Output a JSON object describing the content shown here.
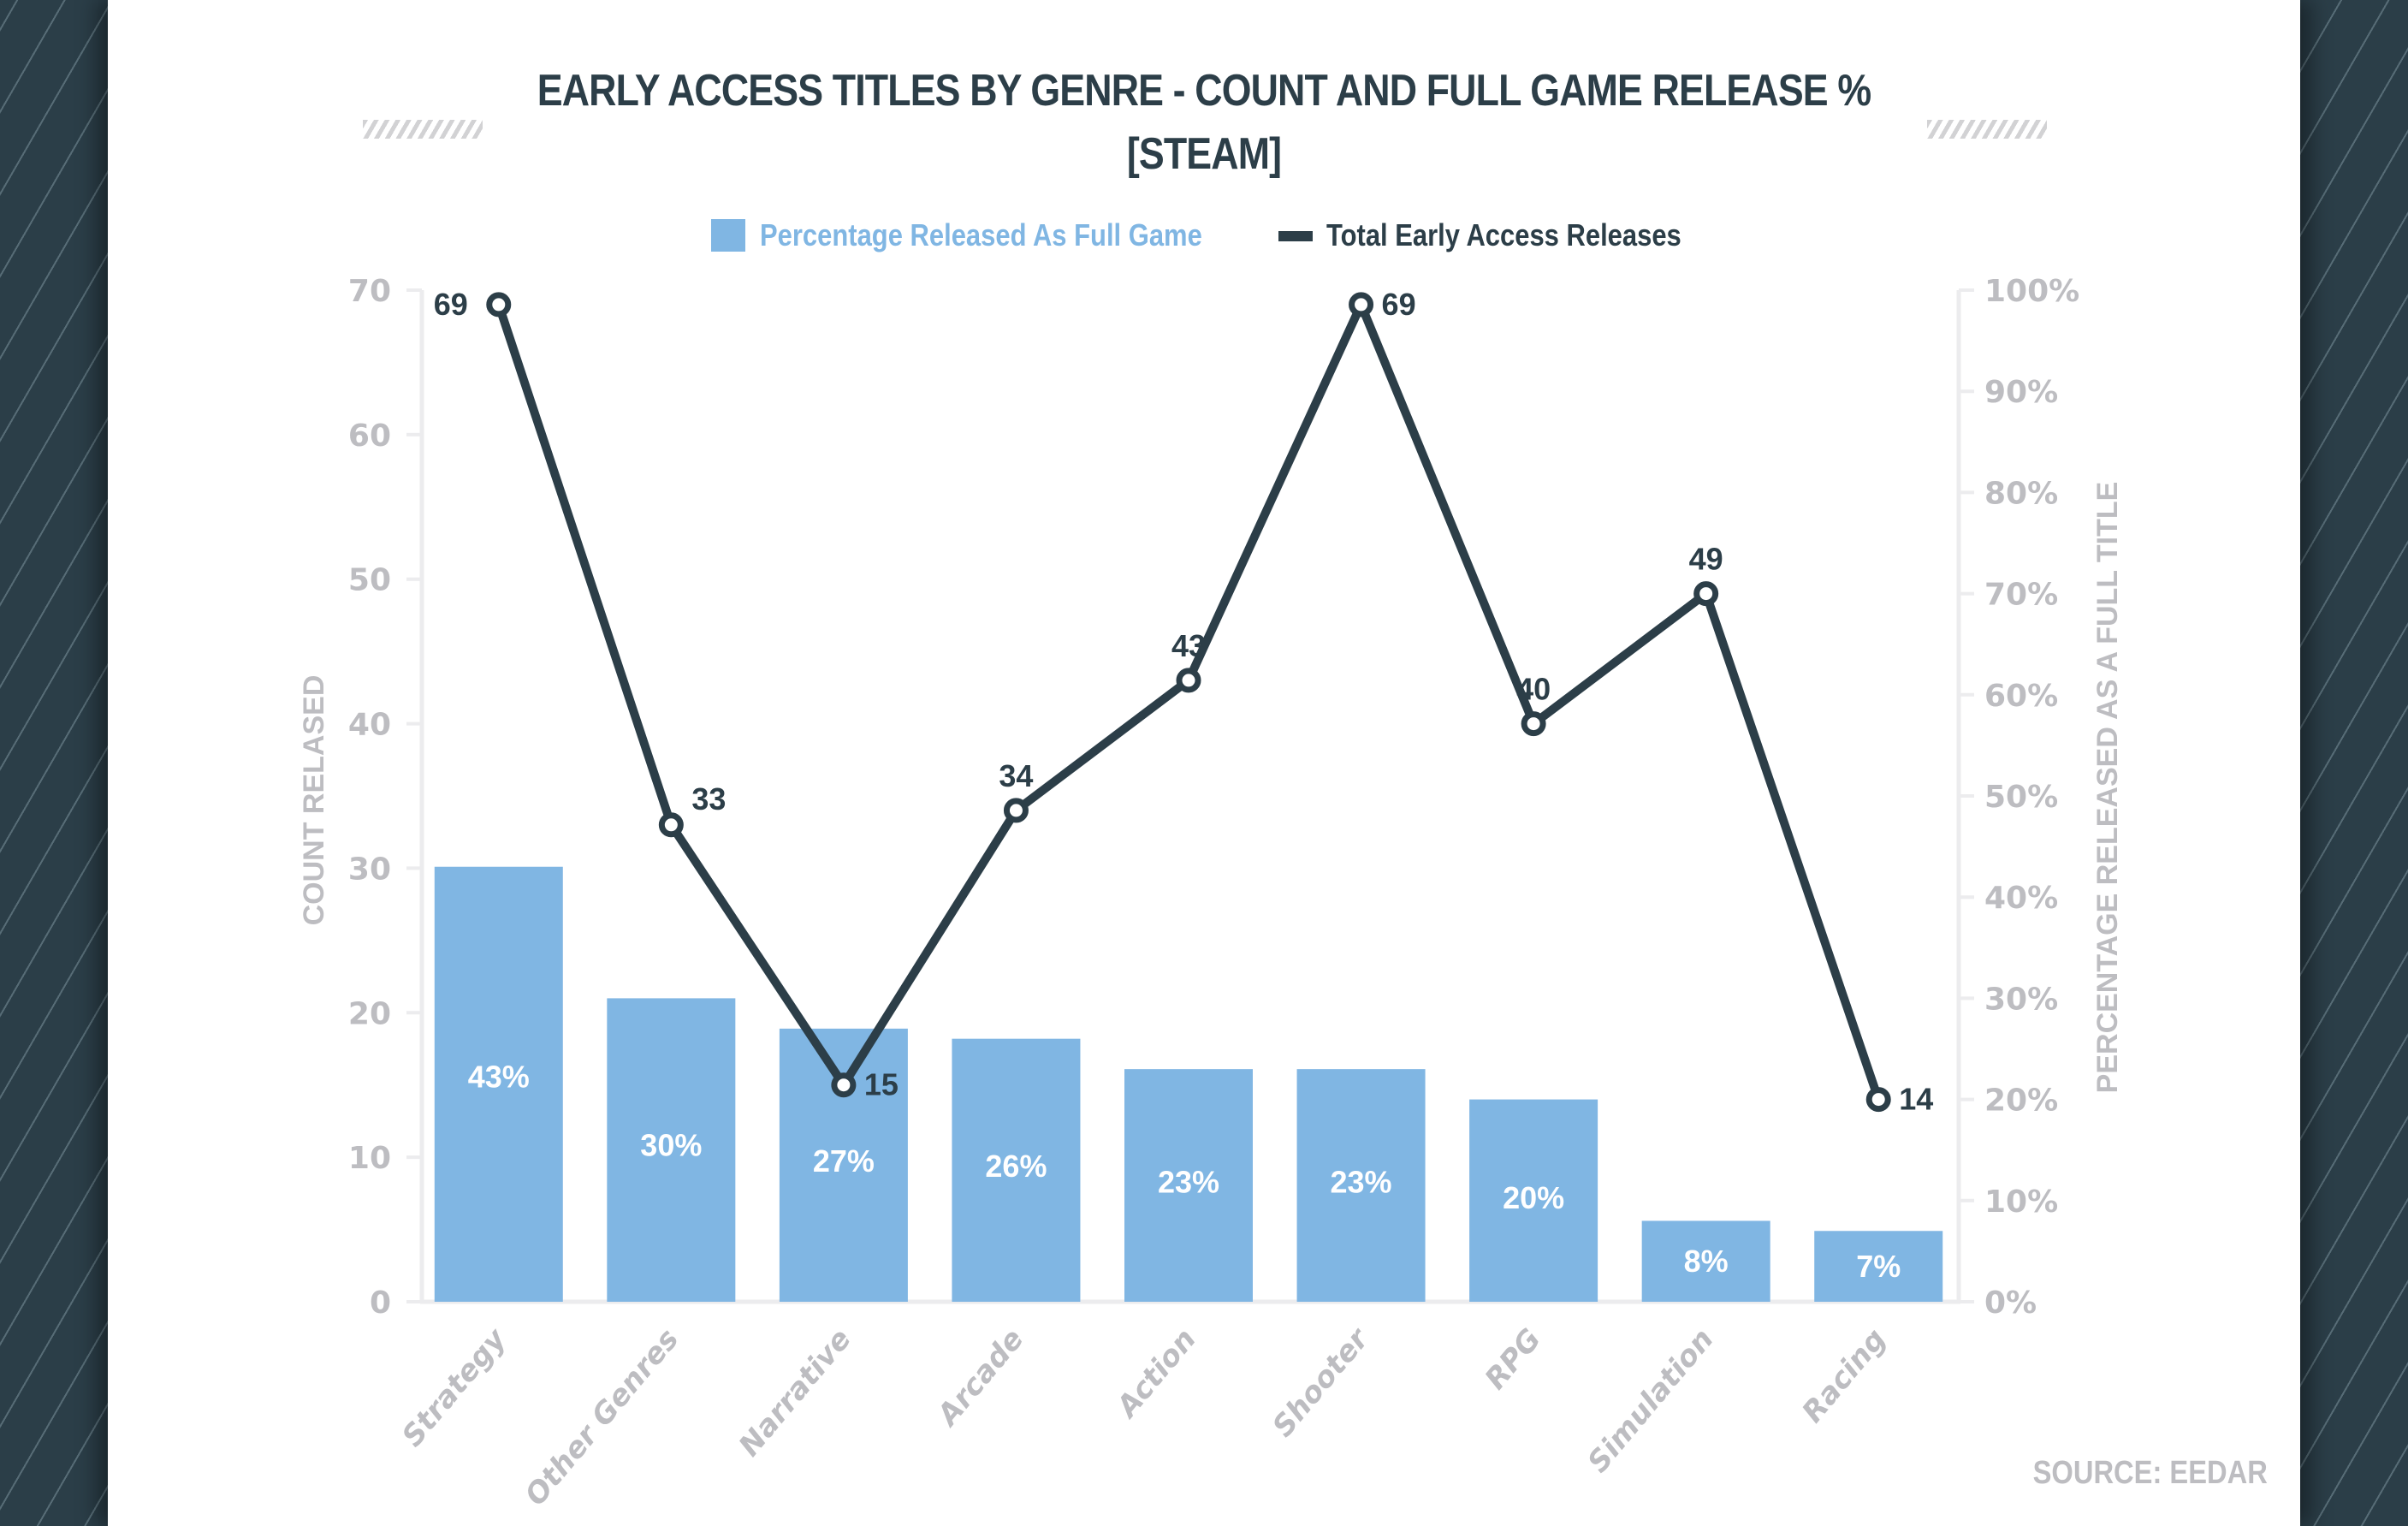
{
  "chart_data": {
    "type": "bar",
    "combo": "bar+line (dual axis)",
    "title": "EARLY ACCESS TITLES BY GENRE - COUNT AND FULL GAME RELEASE %",
    "subtitle": "[STEAM]",
    "categories": [
      "Strategy",
      "Other Genres",
      "Narrative",
      "Arcade",
      "Action",
      "Shooter",
      "RPG",
      "Simulation",
      "Racing"
    ],
    "series": [
      {
        "name": "Percentage Released As Full Game",
        "type": "bar",
        "axis": "right",
        "color": "#80b6e3",
        "values": [
          43,
          30,
          27,
          26,
          23,
          23,
          20,
          8,
          7
        ],
        "labels": [
          "43%",
          "30%",
          "27%",
          "26%",
          "23%",
          "23%",
          "20%",
          "8%",
          "7%"
        ]
      },
      {
        "name": "Total Early Access Releases",
        "type": "line",
        "axis": "left",
        "color": "#2c3e48",
        "values": [
          69,
          33,
          15,
          34,
          43,
          69,
          40,
          49,
          14
        ],
        "labels": [
          "69",
          "33",
          "15",
          "34",
          "43",
          "69",
          "40",
          "49",
          "14"
        ]
      }
    ],
    "ylabel": "COUNT RELASED",
    "ylim": [
      0,
      70
    ],
    "yticks": [
      "0",
      "10",
      "20",
      "30",
      "40",
      "50",
      "60",
      "70"
    ],
    "y2label": "PERCENTAGE RELEASED AS A FULL TITLE",
    "y2lim": [
      0,
      100
    ],
    "y2ticks": [
      "0%",
      "10%",
      "20%",
      "30%",
      "40%",
      "50%",
      "60%",
      "70%",
      "80%",
      "90%",
      "100%"
    ],
    "xlabel": "",
    "grid": false,
    "legend": "top-center"
  },
  "header": {
    "title_line1": "EARLY ACCESS TITLES BY GENRE - COUNT AND FULL GAME RELEASE %",
    "title_line2": "[STEAM]"
  },
  "legend": {
    "bar_label": "Percentage Released As Full Game",
    "line_label": "Total Early Access Releases"
  },
  "footer": {
    "source": "SOURCE: EEDAR"
  }
}
